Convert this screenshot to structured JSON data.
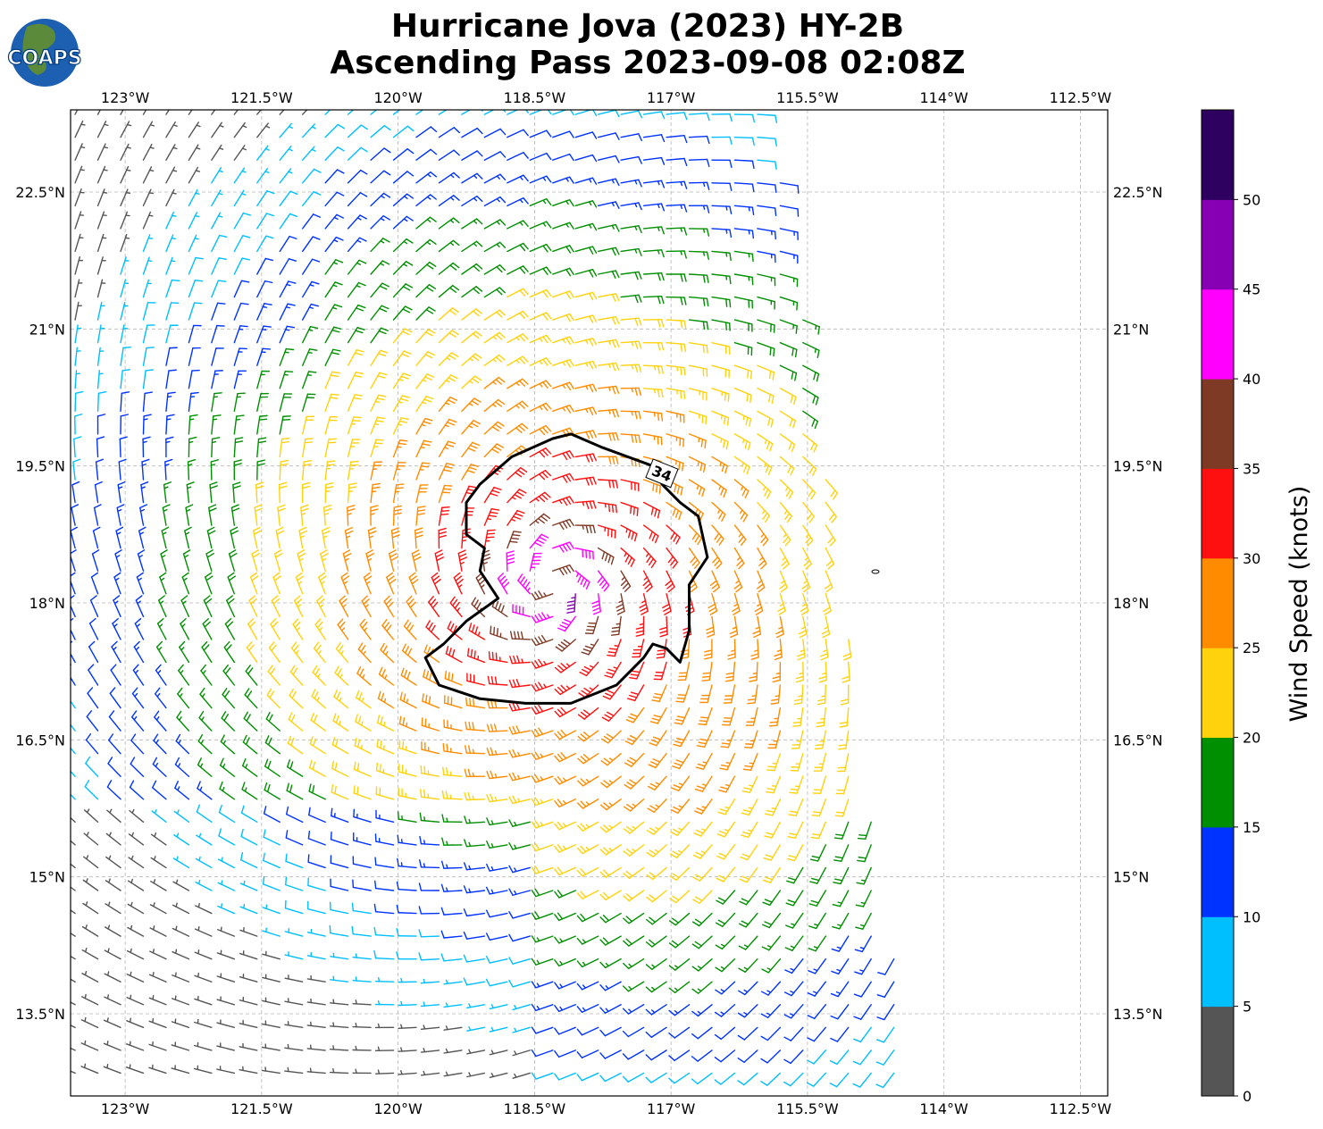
{
  "logo": {
    "text": "COAPS"
  },
  "chart_data": {
    "type": "wind_barb_map",
    "title": [
      "Hurricane Jova (2023) HY-2B",
      "Ascending Pass 2023-09-08 02:08Z"
    ],
    "lon_range": [
      -123.6,
      -112.2
    ],
    "lat_range": [
      12.6,
      23.4
    ],
    "lon_ticks": [
      -123,
      -121.5,
      -120,
      -118.5,
      -117,
      -115.5,
      -114,
      -112.5
    ],
    "lon_tick_labels": [
      "123°W",
      "121.5°W",
      "120°W",
      "118.5°W",
      "117°W",
      "115.5°W",
      "114°W",
      "112.5°W"
    ],
    "lat_ticks": [
      22.5,
      21,
      19.5,
      18,
      16.5,
      15,
      13.5
    ],
    "lat_tick_labels": [
      "22.5°N",
      "21°N",
      "19.5°N",
      "18°N",
      "16.5°N",
      "15°N",
      "13.5°N"
    ],
    "grid": true,
    "storm_center": {
      "lon": -118.3,
      "lat": 18.2
    },
    "contour_label": "34",
    "contour_34kt": [
      [
        -117.2,
        19.5
      ],
      [
        -117.75,
        19.7
      ],
      [
        -118.1,
        19.85
      ],
      [
        -118.3,
        19.8
      ],
      [
        -118.75,
        19.6
      ],
      [
        -119.1,
        19.3
      ],
      [
        -119.25,
        19.1
      ],
      [
        -119.25,
        18.75
      ],
      [
        -119.05,
        18.6
      ],
      [
        -119.1,
        18.35
      ],
      [
        -118.9,
        18.05
      ],
      [
        -119.25,
        17.8
      ],
      [
        -119.5,
        17.55
      ],
      [
        -119.7,
        17.4
      ],
      [
        -119.55,
        17.1
      ],
      [
        -119.1,
        16.95
      ],
      [
        -118.6,
        16.9
      ],
      [
        -118.1,
        16.9
      ],
      [
        -117.6,
        17.1
      ],
      [
        -117.3,
        17.4
      ],
      [
        -117.2,
        17.55
      ],
      [
        -117.05,
        17.5
      ],
      [
        -116.9,
        17.35
      ],
      [
        -116.8,
        17.7
      ],
      [
        -116.8,
        18.2
      ],
      [
        -116.6,
        18.5
      ],
      [
        -116.7,
        18.95
      ],
      [
        -116.9,
        19.1
      ],
      [
        -117.1,
        19.3
      ],
      [
        -117.2,
        19.5
      ]
    ],
    "swath": {
      "west_edge_lon": -123.6,
      "east_edge": [
        [
          -115.9,
          23.4
        ],
        [
          -115.3,
          19.5
        ],
        [
          -114.9,
          16.5
        ],
        [
          -114.45,
          13.5
        ],
        [
          -114.3,
          12.6
        ]
      ]
    },
    "colorbar": {
      "label": "Wind Speed (knots)",
      "bounds": [
        0,
        5,
        10,
        15,
        20,
        25,
        30,
        35,
        40,
        45,
        50,
        55
      ],
      "tick_labels": [
        "0",
        "5",
        "10",
        "15",
        "20",
        "25",
        "30",
        "35",
        "40",
        "45",
        "50"
      ],
      "colors": [
        "#555555",
        "#00bfff",
        "#0033ff",
        "#008f00",
        "#ffd20e",
        "#ff8c00",
        "#ff1010",
        "#7f3a26",
        "#ff00ff",
        "#8800b3",
        "#2e0060"
      ]
    }
  }
}
